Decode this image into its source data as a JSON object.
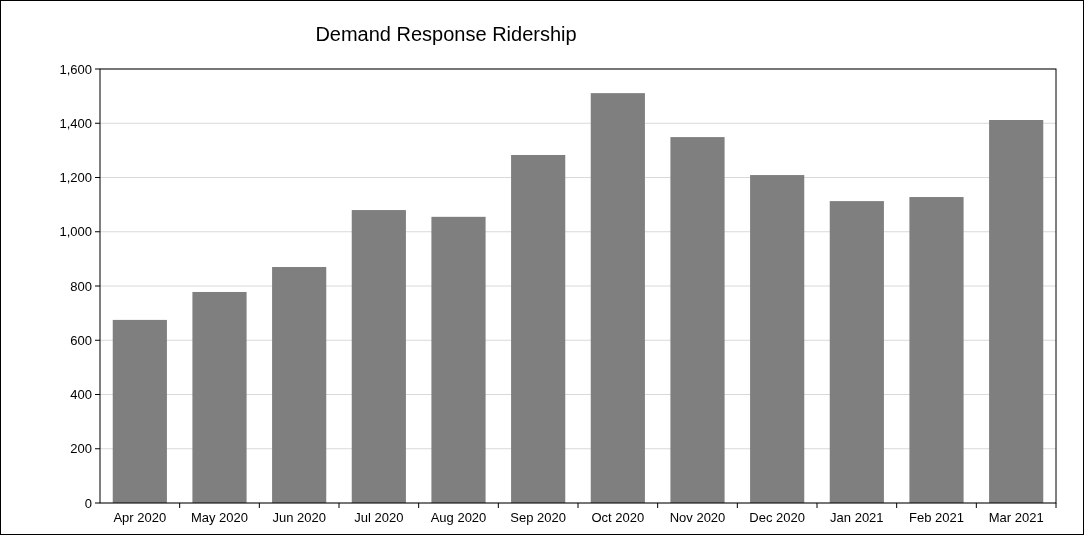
{
  "chart_data": {
    "type": "bar",
    "title": "Demand Response Ridership",
    "categories": [
      "Apr 2020",
      "May 2020",
      "Jun 2020",
      "Jul 2020",
      "Aug 2020",
      "Sep 2020",
      "Oct 2020",
      "Nov 2020",
      "Dec 2020",
      "Jan 2021",
      "Feb 2021",
      "Mar 2021"
    ],
    "values": [
      675,
      778,
      870,
      1080,
      1055,
      1283,
      1511,
      1349,
      1209,
      1113,
      1128,
      1412
    ],
    "color": "#7f7f7f",
    "ylim": [
      0,
      1600
    ],
    "yticks": [
      0,
      {
        "value": 200,
        "label": "200"
      },
      {
        "value": 400,
        "label": "400"
      },
      {
        "value": 600,
        "label": "600"
      },
      {
        "value": 800,
        "label": "800"
      },
      {
        "value": 1000,
        "label": "1,000"
      },
      {
        "value": 1200,
        "label": "1,200"
      },
      {
        "value": 1400,
        "label": "1,400"
      },
      {
        "value": 1600,
        "label": "1,600"
      }
    ],
    "grid": "y"
  }
}
